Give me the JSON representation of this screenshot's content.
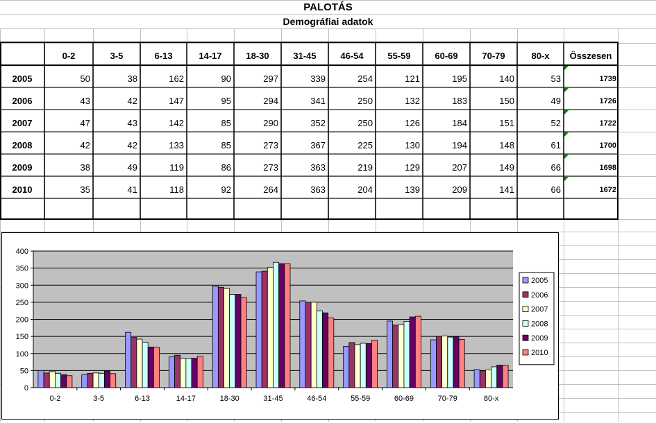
{
  "sheet": {
    "title": "PALOTÁS",
    "subtitle": "Demográfiai adatok",
    "columns": [
      "0-2",
      "3-5",
      "6-13",
      "14-17",
      "18-30",
      "31-45",
      "46-54",
      "55-59",
      "60-69",
      "70-79",
      "80-x",
      "Összesen"
    ],
    "rows": [
      {
        "year": "2005",
        "values": [
          50,
          38,
          162,
          90,
          297,
          339,
          254,
          121,
          195,
          140,
          53
        ],
        "total": "1739"
      },
      {
        "year": "2006",
        "values": [
          43,
          42,
          147,
          95,
          294,
          341,
          250,
          132,
          183,
          150,
          49
        ],
        "total": "1726"
      },
      {
        "year": "2007",
        "values": [
          47,
          43,
          142,
          85,
          290,
          352,
          250,
          126,
          184,
          151,
          52
        ],
        "total": "1722"
      },
      {
        "year": "2008",
        "values": [
          42,
          42,
          133,
          85,
          273,
          367,
          225,
          130,
          194,
          148,
          61
        ],
        "total": "1700"
      },
      {
        "year": "2009",
        "values": [
          38,
          49,
          119,
          86,
          273,
          363,
          219,
          129,
          207,
          149,
          66
        ],
        "total": "1698"
      },
      {
        "year": "2010",
        "values": [
          35,
          41,
          118,
          92,
          264,
          363,
          204,
          139,
          209,
          141,
          66
        ],
        "total": "1672"
      }
    ]
  },
  "chart_data": {
    "type": "bar",
    "categories": [
      "0-2",
      "3-5",
      "6-13",
      "14-17",
      "18-30",
      "31-45",
      "46-54",
      "55-59",
      "60-69",
      "70-79",
      "80-x"
    ],
    "series": [
      {
        "name": "2005",
        "color": "#9999ff",
        "values": [
          50,
          38,
          162,
          90,
          297,
          339,
          254,
          121,
          195,
          140,
          53
        ]
      },
      {
        "name": "2006",
        "color": "#993366",
        "values": [
          43,
          42,
          147,
          95,
          294,
          341,
          250,
          132,
          183,
          150,
          49
        ]
      },
      {
        "name": "2007",
        "color": "#ffffcc",
        "values": [
          47,
          43,
          142,
          85,
          290,
          352,
          250,
          126,
          184,
          151,
          52
        ]
      },
      {
        "name": "2008",
        "color": "#ccffff",
        "values": [
          42,
          42,
          133,
          85,
          273,
          367,
          225,
          130,
          194,
          148,
          61
        ]
      },
      {
        "name": "2009",
        "color": "#660066",
        "values": [
          38,
          49,
          119,
          86,
          273,
          363,
          219,
          129,
          207,
          149,
          66
        ]
      },
      {
        "name": "2010",
        "color": "#ff8080",
        "values": [
          35,
          41,
          118,
          92,
          264,
          363,
          204,
          139,
          209,
          141,
          66
        ]
      }
    ],
    "ylim": [
      0,
      400
    ],
    "yticks": [
      0,
      50,
      100,
      150,
      200,
      250,
      300,
      350,
      400
    ],
    "grid": true,
    "plot_background": "#c0c0c0",
    "legend": "right"
  }
}
